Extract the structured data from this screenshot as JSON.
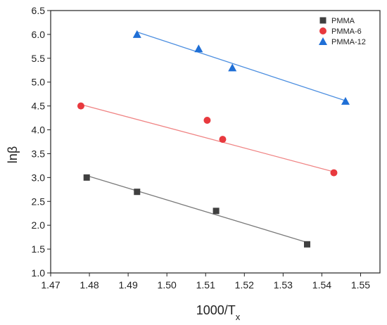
{
  "chart_data": {
    "type": "scatter",
    "title": "",
    "xlabel": "1000/T",
    "xlabel_subscript": "x",
    "ylabel": "lnβ",
    "xlim": [
      1.47,
      1.555
    ],
    "ylim": [
      1.0,
      6.5
    ],
    "x_ticks": [
      "1.47",
      "1.48",
      "1.49",
      "1.50",
      "1.51",
      "1.52",
      "1.53",
      "1.54",
      "1.55"
    ],
    "y_ticks": [
      "1.0",
      "1.5",
      "2.0",
      "2.5",
      "3.0",
      "3.5",
      "4.0",
      "4.5",
      "5.0",
      "5.5",
      "6.0",
      "6.5"
    ],
    "grid": false,
    "legend_position": "top-right",
    "series": [
      {
        "name": "PMMA",
        "marker": "square",
        "color": "#404040",
        "line_color": "#7a7a7a",
        "x": [
          1.4793,
          1.4923,
          1.5127,
          1.5362
        ],
        "y": [
          3.0,
          2.7,
          2.3,
          1.6
        ],
        "fit_x": [
          1.4793,
          1.5362
        ],
        "fit_y": [
          3.04,
          1.64
        ]
      },
      {
        "name": "PMMA-6",
        "marker": "circle",
        "color": "#e8393e",
        "line_color": "#f08585",
        "x": [
          1.4778,
          1.5104,
          1.5144,
          1.5431
        ],
        "y": [
          4.5,
          4.2,
          3.8,
          3.1
        ],
        "fit_x": [
          1.4778,
          1.5431
        ],
        "fit_y": [
          4.53,
          3.12
        ]
      },
      {
        "name": "PMMA-12",
        "marker": "triangle",
        "color": "#1f6fd6",
        "line_color": "#4d8fe0",
        "x": [
          1.4923,
          1.5082,
          1.5169,
          1.5461
        ],
        "y": [
          6.0,
          5.7,
          5.3,
          4.6
        ],
        "fit_x": [
          1.4923,
          1.5461
        ],
        "fit_y": [
          6.05,
          4.61
        ]
      }
    ]
  }
}
